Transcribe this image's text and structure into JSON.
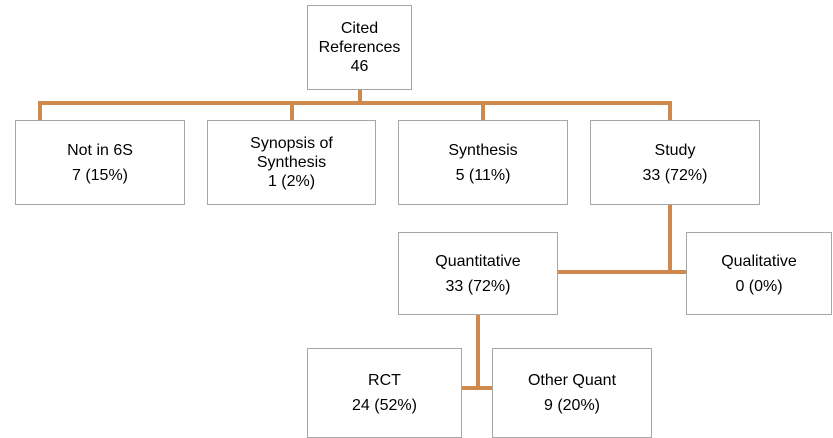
{
  "nodes": [
    {
      "id": "root",
      "lines": [
        "Cited",
        "References",
        "46"
      ]
    },
    {
      "id": "not6s",
      "lines": [
        "Not in 6S",
        "7 (15%)"
      ]
    },
    {
      "id": "synopsis",
      "lines": [
        "Synopsis of",
        "Synthesis",
        "1 (2%)"
      ]
    },
    {
      "id": "synthesis",
      "lines": [
        "Synthesis",
        "5 (11%)"
      ]
    },
    {
      "id": "study",
      "lines": [
        "Study",
        "33 (72%)"
      ]
    },
    {
      "id": "quant",
      "lines": [
        "Quantitative",
        "33 (72%)"
      ]
    },
    {
      "id": "qual",
      "lines": [
        "Qualitative",
        "0 (0%)"
      ]
    },
    {
      "id": "rct",
      "lines": [
        "RCT",
        "24 (52%)"
      ]
    },
    {
      "id": "otherquant",
      "lines": [
        "Other Quant",
        "9 (20%)"
      ]
    }
  ]
}
